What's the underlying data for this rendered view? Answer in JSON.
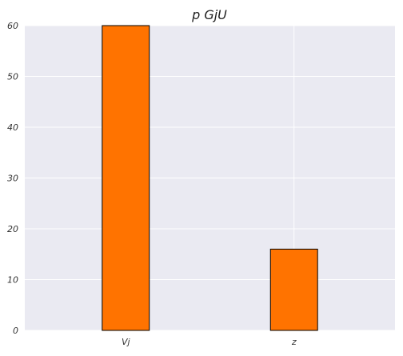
{
  "chart_data": {
    "type": "bar",
    "title": "p GjU",
    "xlabel": "",
    "ylabel": "",
    "categories": [
      "Vj",
      "z"
    ],
    "values": [
      60,
      16
    ],
    "ylim": [
      0,
      60
    ],
    "yticks": [
      0,
      10,
      20,
      30,
      40,
      50,
      60
    ],
    "grid": true,
    "bar_color": "#ff7300",
    "bar_edge_color": "#000000",
    "plot_background": "#eaeaf2",
    "grid_color": "#ffffff"
  }
}
